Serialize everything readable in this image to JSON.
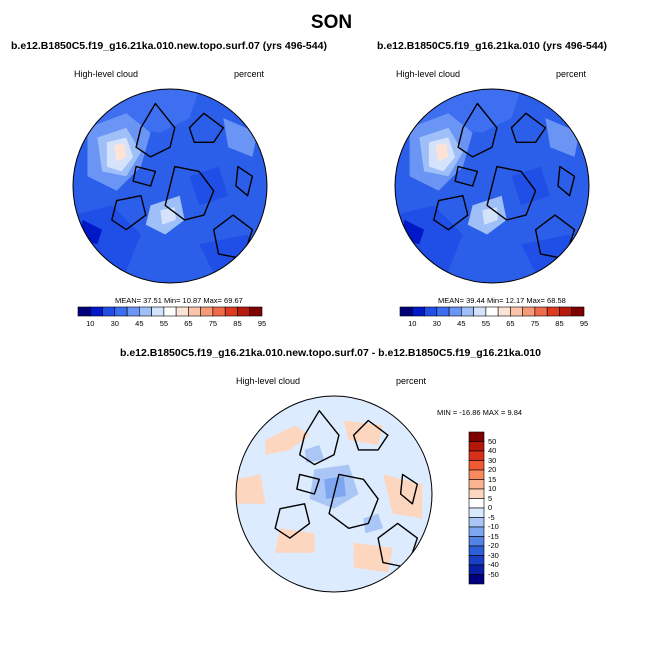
{
  "figure": {
    "title": "SON"
  },
  "chart_data": [
    {
      "type": "heatmap",
      "title": "b.e12.B1850C5.f19_g16.21ka.010.new.topo.surf.07 (yrs 496-544)",
      "left_label": "High-level cloud",
      "right_label": "percent",
      "stats": {
        "mean": 37.51,
        "min": 10.87,
        "max": 69.67
      },
      "stats_text": "MEAN= 37.51 Min= 10.87 Max= 69.67",
      "colorbar_ticks": [
        "10",
        "30",
        "45",
        "55",
        "65",
        "75",
        "85",
        "95"
      ],
      "colorbar_levels": [
        10,
        20,
        30,
        40,
        45,
        50,
        55,
        60,
        65,
        70,
        75,
        80,
        85,
        90,
        95
      ]
    },
    {
      "type": "heatmap",
      "title": "b.e12.B1850C5.f19_g16.21ka.010 (yrs 496-544)",
      "left_label": "High-level cloud",
      "right_label": "percent",
      "stats": {
        "mean": 39.44,
        "min": 12.17,
        "max": 68.58
      },
      "stats_text": "MEAN= 39.44 Min= 12.17 Max= 68.58",
      "colorbar_ticks": [
        "10",
        "30",
        "45",
        "55",
        "65",
        "75",
        "85",
        "95"
      ],
      "colorbar_levels": [
        10,
        20,
        30,
        40,
        45,
        50,
        55,
        60,
        65,
        70,
        75,
        80,
        85,
        90,
        95
      ]
    },
    {
      "type": "heatmap",
      "title": "b.e12.B1850C5.f19_g16.21ka.010.new.topo.surf.07 - b.e12.B1850C5.f19_g16.21ka.010",
      "left_label": "High-level cloud",
      "right_label": "percent",
      "stats": {
        "min": -16.86,
        "max": 9.84
      },
      "stats_text": "MIN = -16.86 MAX = 9.84",
      "colorbar_ticks": [
        "50",
        "40",
        "30",
        "20",
        "15",
        "10",
        "5",
        "0",
        "-5",
        "-10",
        "-15",
        "-20",
        "-30",
        "-40",
        "-50"
      ],
      "colorbar_levels": [
        50,
        40,
        30,
        20,
        15,
        10,
        5,
        0,
        -5,
        -10,
        -15,
        -20,
        -30,
        -40,
        -50
      ]
    }
  ],
  "colors": {
    "abs_palette": [
      "#00007a",
      "#0018c8",
      "#1f4fe6",
      "#3d6ff0",
      "#6a95f5",
      "#9fbff8",
      "#d4e3fb",
      "#ffffff",
      "#fde3d6",
      "#fbc3a9",
      "#f79a78",
      "#f06b4b",
      "#dc3b22",
      "#b71b0e",
      "#7f0000"
    ],
    "diff_palette": [
      "#7f0000",
      "#b5160a",
      "#d7301a",
      "#ef5a33",
      "#f98a5e",
      "#fcb38f",
      "#fdd6c0",
      "#d9e8fd",
      "#a9c6f6",
      "#7ea6f0",
      "#5582e6",
      "#2f5fd8",
      "#1a3ec4",
      "#0a1ea6",
      "#000080"
    ],
    "ocean_abs": "#2b5fea",
    "ocean_diff": "#dcebfd"
  }
}
